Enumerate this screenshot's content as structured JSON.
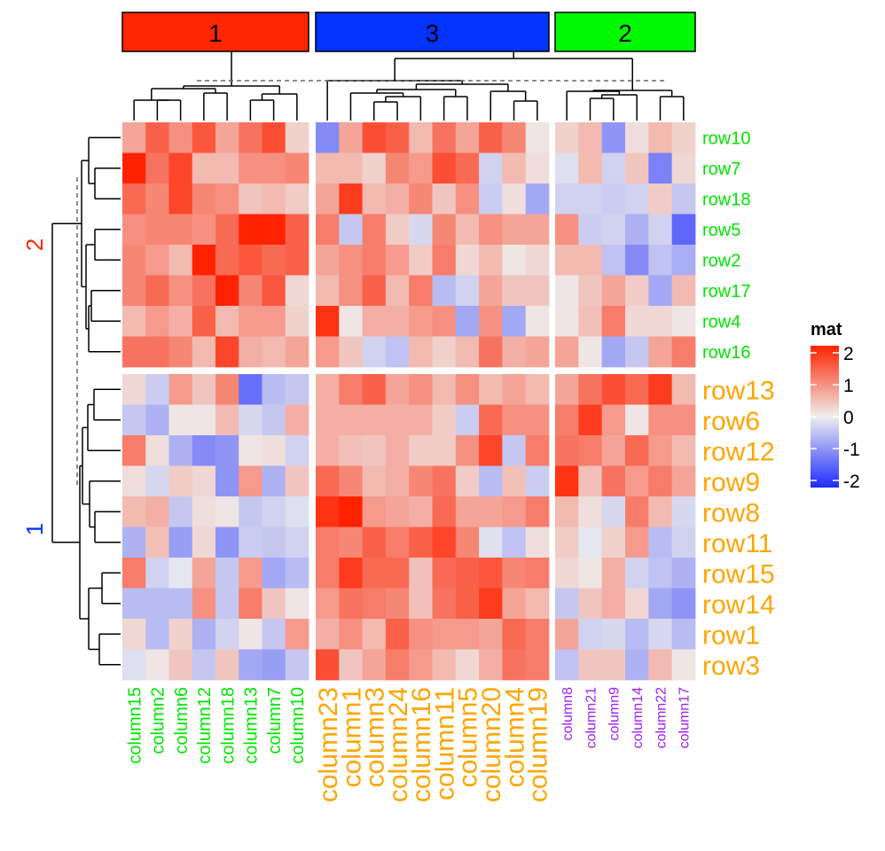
{
  "chart_data": {
    "type": "heatmap",
    "title": "",
    "legend": {
      "title": "mat",
      "breaks": [
        2,
        1,
        0,
        -1,
        -2
      ],
      "range": [
        -2,
        2
      ],
      "colors": {
        "low": "#1E2BFF",
        "mid": "#EEEEEE",
        "high": "#FF2200"
      },
      "placement": "right"
    },
    "column_slices": [
      {
        "label": "1",
        "color": "#FF2600",
        "label_color": "#00E600",
        "columns": [
          "column15",
          "column2",
          "column6",
          "column12",
          "column18",
          "column13",
          "column7",
          "column10"
        ]
      },
      {
        "label": "3",
        "color": "#0433FF",
        "label_color": "#FFA500",
        "columns": [
          "column23",
          "column1",
          "column3",
          "column24",
          "column16",
          "column11",
          "column5",
          "column20",
          "column4",
          "column19"
        ]
      },
      {
        "label": "2",
        "color": "#00F900",
        "label_color": "#A020F0",
        "columns": [
          "column8",
          "column21",
          "column9",
          "column14",
          "column22",
          "column17"
        ]
      }
    ],
    "row_slices": [
      {
        "label": "2",
        "label_color": "#FF2600",
        "row_label_color": "#00E600",
        "rows": [
          "row10",
          "row7",
          "row18",
          "row5",
          "row2",
          "row17",
          "row4",
          "row16"
        ],
        "values": [
          [
            0.6,
            1.3,
            0.8,
            1.4,
            0.6,
            1.1,
            1.5,
            0.2,
            -0.9,
            0.6,
            1.5,
            1.3,
            0.4,
            1.1,
            0.6,
            1.3,
            0.9,
            0.05,
            0.2,
            0.4,
            -0.8,
            0.1,
            0.4,
            0.2
          ],
          [
            2.0,
            1.1,
            1.6,
            0.4,
            0.4,
            0.8,
            0.8,
            0.9,
            0.4,
            0.4,
            0.2,
            0.9,
            0.7,
            1.5,
            1.2,
            -0.2,
            0.4,
            0.1,
            -0.1,
            0.4,
            -0.2,
            0.3,
            -1.0,
            0.15
          ],
          [
            1.2,
            0.9,
            1.6,
            0.9,
            0.8,
            0.3,
            0.4,
            0.25,
            0.6,
            1.7,
            0.4,
            0.5,
            0.9,
            0.3,
            0.8,
            -0.25,
            0.1,
            -0.6,
            -0.2,
            -0.2,
            -0.25,
            -0.2,
            0.25,
            -0.3
          ],
          [
            0.8,
            0.9,
            0.9,
            0.8,
            1.2,
            2.0,
            2.0,
            1.3,
            1.0,
            -0.3,
            1.0,
            0.25,
            -0.15,
            0.9,
            0.4,
            0.8,
            0.6,
            0.6,
            0.8,
            -0.25,
            -0.2,
            -0.5,
            -0.2,
            -1.3
          ],
          [
            0.9,
            0.7,
            0.4,
            2.0,
            1.2,
            1.4,
            1.2,
            1.3,
            0.6,
            0.8,
            1.0,
            0.7,
            0.25,
            1.0,
            0.15,
            0.4,
            0.05,
            0.15,
            0.4,
            0.4,
            -0.35,
            -0.9,
            -0.35,
            -0.55
          ],
          [
            0.9,
            1.2,
            0.8,
            1.1,
            2.0,
            0.9,
            1.4,
            0.15,
            0.4,
            0.8,
            1.3,
            0.4,
            1.0,
            -0.4,
            -0.2,
            0.6,
            0.3,
            0.3,
            0.05,
            0.3,
            0.6,
            0.25,
            -0.6,
            0.4
          ],
          [
            0.4,
            0.7,
            0.5,
            1.3,
            0.4,
            0.7,
            0.7,
            0.2,
            1.8,
            0.05,
            0.5,
            0.5,
            0.7,
            0.8,
            -0.6,
            0.8,
            -0.6,
            0.05,
            0.05,
            0.35,
            1.0,
            0.15,
            0.15,
            0.05
          ],
          [
            1.1,
            1.1,
            0.9,
            0.4,
            1.6,
            0.5,
            0.4,
            0.6,
            0.7,
            0.3,
            -0.2,
            -0.35,
            0.4,
            0.2,
            0.4,
            1.1,
            0.5,
            0.6,
            0.6,
            0.05,
            -0.6,
            -0.3,
            0.6,
            1.0
          ]
        ]
      },
      {
        "label": "1",
        "label_color": "#0433FF",
        "row_label_color": "#FFA500",
        "rows": [
          "row13",
          "row6",
          "row12",
          "row9",
          "row8",
          "row11",
          "row15",
          "row14",
          "row1",
          "row3"
        ],
        "values": [
          [
            0.15,
            -0.25,
            0.7,
            0.3,
            0.9,
            -1.2,
            -0.4,
            -0.3,
            0.5,
            1.0,
            1.3,
            0.6,
            0.8,
            0.4,
            0.8,
            0.4,
            0.6,
            0.4,
            0.6,
            1.1,
            1.5,
            1.2,
            1.7,
            0.4
          ],
          [
            -0.3,
            -0.5,
            0.05,
            0.05,
            0.4,
            -0.15,
            -0.3,
            0.5,
            0.5,
            0.5,
            0.5,
            0.5,
            0.5,
            0.25,
            -0.25,
            1.2,
            0.8,
            0.8,
            1.0,
            1.7,
            0.7,
            0.05,
            0.8,
            0.8
          ],
          [
            1.0,
            0.1,
            -0.5,
            -0.9,
            -0.8,
            0.05,
            0.1,
            -0.2,
            0.5,
            0.35,
            0.3,
            0.5,
            0.25,
            0.25,
            0.8,
            1.6,
            -0.3,
            1.0,
            1.1,
            1.0,
            0.6,
            1.2,
            0.7,
            0.4
          ],
          [
            0.1,
            -0.15,
            0.25,
            0.15,
            -0.8,
            0.7,
            -0.5,
            0.3,
            1.2,
            0.9,
            0.4,
            0.5,
            0.9,
            1.1,
            0.25,
            -0.4,
            0.35,
            -0.25,
            1.8,
            0.35,
            1.1,
            0.7,
            1.0,
            0.6
          ],
          [
            0.4,
            0.5,
            -0.3,
            0.1,
            0.05,
            -0.3,
            -0.2,
            -0.1,
            1.8,
            2.0,
            0.7,
            0.6,
            0.5,
            1.2,
            0.6,
            0.6,
            0.7,
            1.0,
            0.4,
            0.1,
            -0.15,
            1.0,
            0.4,
            -0.15
          ],
          [
            -0.5,
            0.35,
            -0.7,
            0.15,
            -0.8,
            -0.25,
            -0.3,
            -0.2,
            1.0,
            0.9,
            1.3,
            1.0,
            1.3,
            1.6,
            0.9,
            -0.1,
            -0.35,
            0.1,
            0.25,
            -0.05,
            0.2,
            0.7,
            -0.4,
            -0.2
          ],
          [
            1.0,
            -0.2,
            -0.05,
            0.6,
            -0.3,
            0.7,
            -0.6,
            -0.4,
            1.0,
            1.7,
            1.2,
            1.2,
            0.35,
            1.2,
            1.3,
            1.4,
            0.9,
            1.0,
            0.15,
            0.05,
            0.5,
            -0.2,
            -0.35,
            -0.5
          ],
          [
            -0.4,
            -0.4,
            -0.4,
            0.8,
            -0.3,
            1.0,
            0.3,
            0.05,
            0.7,
            1.1,
            1.0,
            0.9,
            0.35,
            1.1,
            1.3,
            1.7,
            0.6,
            0.4,
            -0.3,
            0.3,
            0.5,
            0.15,
            -0.6,
            -0.8
          ],
          [
            0.15,
            -0.4,
            0.2,
            -0.5,
            -0.2,
            0.05,
            -0.3,
            0.7,
            0.5,
            0.8,
            0.4,
            1.3,
            0.8,
            0.7,
            0.7,
            0.6,
            1.2,
            1.0,
            0.6,
            -0.2,
            -0.15,
            -0.4,
            -0.15,
            -0.4
          ],
          [
            -0.1,
            0.05,
            0.3,
            -0.3,
            0.3,
            -0.6,
            -0.7,
            -0.3,
            1.5,
            0.3,
            0.6,
            1.0,
            0.7,
            0.4,
            0.15,
            0.5,
            1.1,
            1.0,
            -0.35,
            0.3,
            0.3,
            -0.5,
            0.4,
            0.05
          ]
        ]
      }
    ],
    "xlabel": "",
    "ylabel": "",
    "grid": false,
    "dendrograms": {
      "rows": "left",
      "columns": "top",
      "cut_line": "dashed"
    }
  }
}
